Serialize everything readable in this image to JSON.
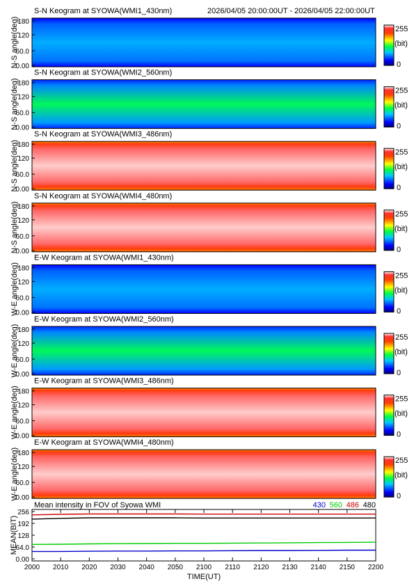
{
  "header": {
    "time_range": "2026/04/05 20:00:00UT - 2026/04/05 22:00:00UT"
  },
  "colorbar": {
    "max_label": "255",
    "unit_label": "(bit)",
    "min_label": "0"
  },
  "keograms": [
    {
      "title": "S-N Keogram at SYOWA(WMI1_430nm)",
      "ylabel": "N-S angle(deg)",
      "yticks": [
        "180",
        "120",
        "60.0",
        "0.00"
      ],
      "appearance": "blue-green",
      "levels": {
        "background": 75,
        "edges": 30
      }
    },
    {
      "title": "S-N Keogram at SYOWA(WMI2_560nm)",
      "ylabel": "N-S angle(deg)",
      "yticks": [
        "180",
        "120",
        "60.0",
        "0.00"
      ],
      "appearance": "green",
      "levels": {
        "background": 115,
        "edges": 40
      }
    },
    {
      "title": "S-N Keogram at SYOWA(WMI3_486nm)",
      "ylabel": "N-S angle(deg)",
      "yticks": [
        "180",
        "120",
        "60.0",
        "0.00"
      ],
      "appearance": "white-red",
      "levels": {
        "background": 250,
        "edges": 215
      }
    },
    {
      "title": "S-N Keogram at SYOWA(WMI4_480nm)",
      "ylabel": "N-S angle(deg)",
      "yticks": [
        "180",
        "120",
        "60.0",
        "0.00"
      ],
      "appearance": "white-red",
      "levels": {
        "background": 250,
        "edges": 215
      }
    },
    {
      "title": "E-W Keogram at SYOWA(WMI1_430nm)",
      "ylabel": "W-E angle(deg)",
      "yticks": [
        "180",
        "120",
        "60.0",
        "0.00"
      ],
      "appearance": "blue-green",
      "levels": {
        "background": 75,
        "edges": 30
      }
    },
    {
      "title": "E-W Keogram at SYOWA(WMI2_560nm)",
      "ylabel": "W-E angle(deg)",
      "yticks": [
        "180",
        "120",
        "60.0",
        "0.00"
      ],
      "appearance": "green",
      "levels": {
        "background": 115,
        "edges": 40
      }
    },
    {
      "title": "E-W Keogram at SYOWA(WMI3_486nm)",
      "ylabel": "W-E angle(deg)",
      "yticks": [
        "180",
        "120",
        "60.0",
        "0.00"
      ],
      "appearance": "white-red",
      "levels": {
        "background": 250,
        "edges": 215
      }
    },
    {
      "title": "E-W Keogram at SYOWA(WMI4_480nm)",
      "ylabel": "W-E angle(deg)",
      "yticks": [
        "180",
        "120",
        "60.0",
        "0.00"
      ],
      "appearance": "white-red",
      "levels": {
        "background": 250,
        "edges": 215
      }
    }
  ],
  "chart_data": {
    "type": "line",
    "title": "Mean intensity in FOV of Syowa WMI",
    "xlabel": "TIME(UT)",
    "ylabel": "MEAN(BIT)",
    "ylim": [
      0,
      256
    ],
    "yticks": [
      "256",
      "192",
      "128",
      "64.0",
      "0.00"
    ],
    "xticks": [
      "2000",
      "2010",
      "2020",
      "2030",
      "2040",
      "2050",
      "2100",
      "2110",
      "2120",
      "2130",
      "2140",
      "2150",
      "2200"
    ],
    "x_minutes": [
      0,
      10,
      20,
      30,
      40,
      50,
      60,
      70,
      80,
      90,
      100,
      110,
      120
    ],
    "grid": false,
    "legend_position": "top-right",
    "series": [
      {
        "name": "430",
        "color": "#0000cc",
        "values": [
          40,
          40,
          41,
          42,
          42,
          43,
          43,
          44,
          45,
          45,
          46,
          47,
          47
        ]
      },
      {
        "name": "560",
        "color": "#00cc00",
        "values": [
          78,
          79,
          81,
          82,
          83,
          84,
          84,
          85,
          86,
          87,
          88,
          89,
          90
        ]
      },
      {
        "name": "486",
        "color": "#cc0000",
        "values": [
          238,
          241,
          243,
          243,
          243,
          243,
          242,
          242,
          242,
          242,
          242,
          242,
          242
        ]
      },
      {
        "name": "480",
        "color": "#000000",
        "values": [
          215,
          219,
          222,
          222,
          222,
          222,
          221,
          221,
          221,
          221,
          221,
          221,
          221
        ]
      }
    ]
  }
}
